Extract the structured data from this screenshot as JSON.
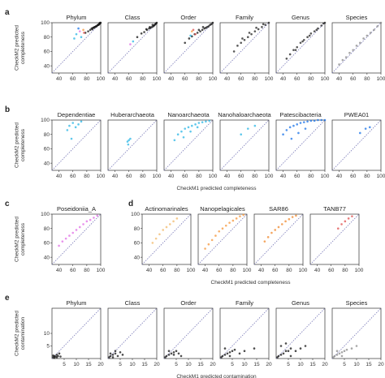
{
  "figure": {
    "colors": {
      "grey": "#8a8a8a",
      "black": "#111111",
      "cyan": "#29b6e6",
      "blue": "#1a73e8",
      "magenta": "#e06ee6",
      "light_orange": "#f2b96b",
      "orange": "#f5963a",
      "orange2": "#f0882c",
      "red": "#e05050",
      "diag": "#7a7ab8"
    }
  },
  "panels": [
    {
      "label": "a",
      "ylabel": "CheckM2 predicted\ncompleteness",
      "xlabel": "",
      "xticks": [
        "40",
        "60",
        "80",
        "100"
      ],
      "yticks": [
        "40",
        "60",
        "80",
        "100"
      ],
      "subplots": [
        "Phylum",
        "Class",
        "Order",
        "Family",
        "Genus",
        "Species"
      ]
    },
    {
      "label": "b",
      "ylabel": "CheckM2 predicted\ncompleteness",
      "xlabel": "CheckM1 predicted completeness",
      "xticks": [
        "40",
        "60",
        "80",
        "100"
      ],
      "yticks": [
        "40",
        "60",
        "80",
        "100"
      ],
      "subplots": [
        "Dependentiae",
        "Huberarchaeota",
        "Nanoarchaeota",
        "Nanohaloarchaeota",
        "Patescibacteria",
        "PWEA01"
      ]
    },
    {
      "label": "c",
      "ylabel": "CheckM2 predicted\ncompleteness",
      "xlabel": "",
      "xticks": [
        "40",
        "60",
        "80",
        "100"
      ],
      "yticks": [
        "40",
        "60",
        "80",
        "100"
      ],
      "subplots": [
        "Poseidoniia_A"
      ]
    },
    {
      "label": "d",
      "ylabel": "",
      "xlabel": "CheckM1 predicted completeness",
      "xticks": [
        "40",
        "60",
        "80",
        "100"
      ],
      "yticks": [
        "40",
        "60",
        "80",
        "100"
      ],
      "subplots": [
        "Actinomarinales",
        "Nanopelagicales",
        "SAR86",
        "TANB77"
      ]
    },
    {
      "label": "e",
      "ylabel": "CheckM2 predicted\ncontamination",
      "xlabel": "CheckM1 predicted contamination",
      "xticks": [
        "5",
        "10",
        "15",
        "20"
      ],
      "yticks": [
        "5",
        "10"
      ],
      "subplots": [
        "Phylum",
        "Class",
        "Order",
        "Family",
        "Genus",
        "Species"
      ]
    }
  ],
  "chart_data": [
    {
      "type": "scatter",
      "panel": "a",
      "title": "Phylum",
      "xlabel": "",
      "ylabel": "CheckM2 predicted completeness",
      "xlim": [
        30,
        100
      ],
      "ylim": [
        30,
        100
      ],
      "grid": false,
      "series": [
        {
          "color": "#111111",
          "x": [
            78,
            82,
            85,
            88,
            90,
            92,
            94,
            95,
            96,
            97,
            98,
            99,
            99,
            100,
            98,
            96,
            93,
            91,
            89,
            87
          ],
          "y": [
            86,
            88,
            90,
            91,
            93,
            94,
            95,
            96,
            97,
            97,
            98,
            99,
            100,
            100,
            99,
            97,
            95,
            94,
            93,
            92
          ]
        },
        {
          "color": "#1a73e8",
          "x": [
            68
          ],
          "y": [
            92
          ]
        },
        {
          "color": "#29b6e6",
          "x": [
            62,
            65,
            72
          ],
          "y": [
            78,
            84,
            80
          ]
        },
        {
          "color": "#e06ee6",
          "x": [
            70
          ],
          "y": [
            88
          ]
        },
        {
          "color": "#f5963a",
          "x": [
            75
          ],
          "y": [
            90
          ]
        },
        {
          "color": "#e05050",
          "x": [
            76
          ],
          "y": [
            86
          ]
        }
      ]
    },
    {
      "type": "scatter",
      "panel": "a",
      "title": "Class",
      "xlim": [
        30,
        100
      ],
      "ylim": [
        30,
        100
      ],
      "grid": false,
      "series": [
        {
          "color": "#111111",
          "x": [
            72,
            78,
            82,
            86,
            89,
            91,
            93,
            95,
            96,
            97,
            98,
            99,
            100,
            94,
            90,
            85
          ],
          "y": [
            80,
            85,
            87,
            90,
            92,
            93,
            94,
            95,
            96,
            97,
            98,
            99,
            100,
            97,
            94,
            91
          ]
        },
        {
          "color": "#e06ee6",
          "x": [
            62
          ],
          "y": [
            70
          ]
        },
        {
          "color": "#29b6e6",
          "x": [
            66
          ],
          "y": [
            74
          ]
        }
      ]
    },
    {
      "type": "scatter",
      "panel": "a",
      "title": "Order",
      "xlim": [
        30,
        100
      ],
      "ylim": [
        30,
        100
      ],
      "grid": false,
      "series": [
        {
          "color": "#111111",
          "x": [
            60,
            66,
            70,
            74,
            78,
            82,
            85,
            88,
            90,
            92,
            94,
            96,
            98,
            100,
            86,
            80
          ],
          "y": [
            72,
            78,
            81,
            84,
            86,
            88,
            90,
            92,
            93,
            94,
            95,
            97,
            98,
            100,
            94,
            90
          ]
        },
        {
          "color": "#e05050",
          "x": [
            72,
            75
          ],
          "y": [
            90,
            84
          ]
        },
        {
          "color": "#f5963a",
          "x": [
            70
          ],
          "y": [
            88
          ]
        },
        {
          "color": "#29b6e6",
          "x": [
            68
          ],
          "y": [
            82
          ]
        }
      ]
    },
    {
      "type": "scatter",
      "panel": "a",
      "title": "Family",
      "xlim": [
        30,
        100
      ],
      "ylim": [
        30,
        100
      ],
      "grid": false,
      "series": [
        {
          "color": "#222222",
          "x": [
            50,
            55,
            60,
            65,
            70,
            75,
            80,
            85,
            90,
            95,
            100,
            62,
            72,
            82,
            92
          ],
          "y": [
            60,
            68,
            72,
            76,
            80,
            84,
            88,
            91,
            94,
            97,
            100,
            78,
            86,
            93,
            98
          ]
        }
      ]
    },
    {
      "type": "scatter",
      "panel": "a",
      "title": "Genus",
      "xlim": [
        30,
        100
      ],
      "ylim": [
        30,
        100
      ],
      "grid": false,
      "series": [
        {
          "color": "#222222",
          "x": [
            45,
            50,
            55,
            60,
            65,
            70,
            75,
            80,
            85,
            90,
            95,
            100,
            58,
            68,
            78,
            88,
            98
          ],
          "y": [
            50,
            56,
            62,
            66,
            72,
            76,
            80,
            85,
            88,
            92,
            96,
            100,
            62,
            74,
            82,
            90,
            99
          ]
        }
      ]
    },
    {
      "type": "scatter",
      "panel": "a",
      "title": "Species",
      "xlim": [
        30,
        100
      ],
      "ylim": [
        30,
        100
      ],
      "grid": false,
      "series": [
        {
          "color": "#8a8a8a",
          "x": [
            40,
            45,
            50,
            55,
            60,
            65,
            70,
            75,
            80,
            85,
            90,
            95,
            100
          ],
          "y": [
            42,
            48,
            52,
            58,
            62,
            68,
            72,
            78,
            82,
            86,
            90,
            95,
            100
          ]
        }
      ]
    },
    {
      "type": "scatter",
      "panel": "b",
      "title": "Dependentiae",
      "xlim": [
        30,
        100
      ],
      "ylim": [
        30,
        100
      ],
      "grid": false,
      "series": [
        {
          "color": "#29b6e6",
          "x": [
            52,
            55,
            60,
            64,
            68,
            72,
            58
          ],
          "y": [
            86,
            92,
            96,
            90,
            94,
            98,
            74
          ]
        }
      ]
    },
    {
      "type": "scatter",
      "panel": "b",
      "title": "Huberarchaeota",
      "xlim": [
        30,
        100
      ],
      "ylim": [
        30,
        100
      ],
      "grid": false,
      "series": [
        {
          "color": "#29b6e6",
          "x": [
            58,
            60,
            62,
            59
          ],
          "y": [
            70,
            72,
            74,
            66
          ]
        }
      ]
    },
    {
      "type": "scatter",
      "panel": "b",
      "title": "Nanoarchaeota",
      "xlim": [
        30,
        100
      ],
      "ylim": [
        30,
        100
      ],
      "grid": false,
      "series": [
        {
          "color": "#29b6e6",
          "x": [
            45,
            50,
            55,
            60,
            65,
            70,
            75,
            80,
            85,
            90,
            95,
            58,
            68,
            78
          ],
          "y": [
            72,
            80,
            84,
            88,
            90,
            92,
            94,
            96,
            97,
            98,
            99,
            76,
            84,
            90
          ]
        }
      ]
    },
    {
      "type": "scatter",
      "panel": "b",
      "title": "Nanohaloarchaeota",
      "xlim": [
        30,
        100
      ],
      "ylim": [
        30,
        100
      ],
      "grid": false,
      "series": [
        {
          "color": "#29b6e6",
          "x": [
            60,
            70,
            80
          ],
          "y": [
            80,
            88,
            92
          ]
        }
      ]
    },
    {
      "type": "scatter",
      "panel": "b",
      "title": "Patescibacteria",
      "xlim": [
        30,
        100
      ],
      "ylim": [
        30,
        100
      ],
      "grid": false,
      "series": [
        {
          "color": "#1a73e8",
          "x": [
            40,
            45,
            50,
            55,
            60,
            65,
            70,
            75,
            80,
            85,
            90,
            95,
            100,
            52,
            62,
            72
          ],
          "y": [
            80,
            86,
            90,
            92,
            94,
            96,
            97,
            98,
            99,
            99,
            100,
            100,
            100,
            74,
            82,
            88
          ]
        }
      ]
    },
    {
      "type": "scatter",
      "panel": "b",
      "title": "PWEA01",
      "xlim": [
        30,
        100
      ],
      "ylim": [
        30,
        100
      ],
      "grid": false,
      "series": [
        {
          "color": "#1a73e8",
          "x": [
            70,
            78,
            84
          ],
          "y": [
            82,
            88,
            90
          ]
        }
      ]
    },
    {
      "type": "scatter",
      "panel": "c",
      "title": "Poseidoniia_A",
      "xlim": [
        30,
        100
      ],
      "ylim": [
        30,
        100
      ],
      "grid": false,
      "series": [
        {
          "color": "#e06ee6",
          "x": [
            40,
            45,
            50,
            55,
            60,
            65,
            70,
            75,
            80,
            85,
            90,
            95
          ],
          "y": [
            56,
            62,
            66,
            70,
            74,
            78,
            82,
            86,
            90,
            92,
            95,
            98
          ]
        }
      ]
    },
    {
      "type": "scatter",
      "panel": "d",
      "title": "Actinomarinales",
      "xlim": [
        30,
        100
      ],
      "ylim": [
        30,
        100
      ],
      "grid": false,
      "series": [
        {
          "color": "#f2b96b",
          "x": [
            45,
            50,
            55,
            60,
            65,
            70,
            75,
            80
          ],
          "y": [
            60,
            66,
            72,
            78,
            82,
            86,
            90,
            94
          ]
        }
      ]
    },
    {
      "type": "scatter",
      "panel": "d",
      "title": "Nanopelagicales",
      "xlim": [
        30,
        100
      ],
      "ylim": [
        30,
        100
      ],
      "grid": false,
      "series": [
        {
          "color": "#f5963a",
          "x": [
            40,
            45,
            50,
            55,
            60,
            65,
            70,
            75,
            80,
            85,
            90,
            95
          ],
          "y": [
            52,
            58,
            64,
            70,
            76,
            80,
            84,
            88,
            91,
            94,
            97,
            99
          ]
        }
      ]
    },
    {
      "type": "scatter",
      "panel": "d",
      "title": "SAR86",
      "xlim": [
        30,
        100
      ],
      "ylim": [
        30,
        100
      ],
      "grid": false,
      "series": [
        {
          "color": "#f0882c",
          "x": [
            45,
            50,
            55,
            60,
            65,
            70,
            75,
            80,
            85,
            90
          ],
          "y": [
            62,
            68,
            74,
            78,
            82,
            86,
            90,
            93,
            96,
            98
          ]
        }
      ]
    },
    {
      "type": "scatter",
      "panel": "d",
      "title": "TANB77",
      "xlim": [
        30,
        100
      ],
      "ylim": [
        30,
        100
      ],
      "grid": false,
      "series": [
        {
          "color": "#e05050",
          "x": [
            70,
            75,
            80,
            85,
            90
          ],
          "y": [
            80,
            86,
            90,
            94,
            97
          ]
        }
      ]
    },
    {
      "type": "scatter",
      "panel": "e",
      "title": "Phylum",
      "xlim": [
        0,
        20
      ],
      "ylim": [
        0,
        20
      ],
      "grid": false,
      "series": [
        {
          "color": "#111111",
          "x": [
            0.5,
            1,
            1.5,
            2,
            2.5,
            3,
            1,
            0.5,
            2,
            3.5
          ],
          "y": [
            0.5,
            1,
            0.8,
            1.5,
            1,
            2,
            0.3,
            1.2,
            0.5,
            0.8
          ]
        }
      ]
    },
    {
      "type": "scatter",
      "panel": "e",
      "title": "Class",
      "xlim": [
        0,
        20
      ],
      "ylim": [
        0,
        20
      ],
      "grid": false,
      "series": [
        {
          "color": "#111111",
          "x": [
            0.5,
            1,
            2,
            3,
            4,
            5,
            6,
            2,
            1,
            3
          ],
          "y": [
            0.5,
            1,
            1.5,
            2,
            1,
            2.5,
            1.5,
            0.5,
            2,
            3
          ]
        }
      ]
    },
    {
      "type": "scatter",
      "panel": "e",
      "title": "Order",
      "xlim": [
        0,
        20
      ],
      "ylim": [
        0,
        20
      ],
      "grid": false,
      "series": [
        {
          "color": "#111111",
          "x": [
            0.5,
            1,
            2,
            3,
            4,
            5,
            6,
            7,
            2,
            4
          ],
          "y": [
            0.5,
            1,
            1.5,
            2,
            2.5,
            3,
            2,
            1,
            3,
            1.5
          ]
        }
      ]
    },
    {
      "type": "scatter",
      "panel": "e",
      "title": "Family",
      "xlim": [
        0,
        20
      ],
      "ylim": [
        0,
        20
      ],
      "grid": false,
      "series": [
        {
          "color": "#111111",
          "x": [
            0.5,
            1,
            2,
            3,
            4,
            5,
            6,
            8,
            10,
            2,
            4,
            14
          ],
          "y": [
            0.5,
            1,
            1.5,
            2,
            2.5,
            3,
            3.5,
            2,
            3,
            4,
            1,
            4
          ]
        }
      ]
    },
    {
      "type": "scatter",
      "panel": "e",
      "title": "Genus",
      "xlim": [
        0,
        20
      ],
      "ylim": [
        0,
        20
      ],
      "grid": false,
      "series": [
        {
          "color": "#111111",
          "x": [
            0.5,
            1,
            2,
            3,
            4,
            5,
            6,
            8,
            10,
            12,
            2,
            4,
            6
          ],
          "y": [
            0.5,
            1,
            1.5,
            2,
            3,
            3,
            4,
            3,
            4,
            5,
            5,
            6,
            1
          ]
        }
      ]
    },
    {
      "type": "scatter",
      "panel": "e",
      "title": "Species",
      "xlim": [
        0,
        20
      ],
      "ylim": [
        0,
        20
      ],
      "grid": false,
      "series": [
        {
          "color": "#8a8a8a",
          "x": [
            0.5,
            1,
            2,
            3,
            4,
            5,
            6,
            8,
            10,
            2,
            4
          ],
          "y": [
            0.5,
            1,
            1.5,
            2,
            2.5,
            3,
            3.5,
            4,
            5,
            3,
            1
          ]
        }
      ]
    }
  ]
}
